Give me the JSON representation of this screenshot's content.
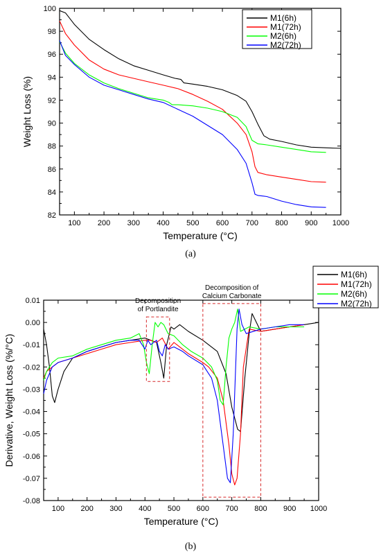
{
  "chart_data": [
    {
      "type": "line",
      "caption": "(a)",
      "xlabel": "Temperature (°C)",
      "ylabel": "Weight Loss (%)",
      "xlim": [
        50,
        1000
      ],
      "ylim": [
        82,
        100
      ],
      "xticks": [
        100,
        200,
        300,
        400,
        500,
        600,
        700,
        800,
        900,
        1000
      ],
      "yticks": [
        82,
        84,
        86,
        88,
        90,
        92,
        94,
        96,
        98,
        100
      ],
      "legend_position": "top-right",
      "series": [
        {
          "name": "M1(6h)",
          "color": "#000000",
          "x": [
            50,
            70,
            100,
            150,
            200,
            250,
            300,
            350,
            400,
            440,
            460,
            470,
            500,
            550,
            600,
            650,
            680,
            700,
            720,
            740,
            760,
            800,
            850,
            900,
            950,
            1000
          ],
          "y": [
            99.8,
            99.6,
            98.6,
            97.3,
            96.4,
            95.6,
            95.0,
            94.6,
            94.2,
            93.9,
            93.8,
            93.5,
            93.4,
            93.2,
            92.9,
            92.4,
            91.9,
            91.0,
            89.9,
            88.9,
            88.6,
            88.4,
            88.1,
            87.9,
            87.85,
            87.8
          ]
        },
        {
          "name": "M1(72h)",
          "color": "#ff0000",
          "x": [
            50,
            70,
            100,
            150,
            200,
            250,
            300,
            350,
            400,
            450,
            500,
            550,
            600,
            650,
            680,
            700,
            710,
            720,
            750,
            800,
            850,
            900,
            950
          ],
          "y": [
            98.9,
            97.8,
            96.8,
            95.5,
            94.7,
            94.2,
            93.9,
            93.6,
            93.3,
            93.0,
            92.5,
            91.9,
            91.2,
            90.0,
            89.0,
            87.5,
            86.2,
            85.7,
            85.5,
            85.3,
            85.1,
            84.9,
            84.85
          ]
        },
        {
          "name": "M2(6h)",
          "color": "#00ff00",
          "x": [
            50,
            70,
            100,
            150,
            200,
            250,
            300,
            350,
            400,
            420,
            430,
            450,
            500,
            550,
            600,
            650,
            680,
            700,
            720,
            750,
            800,
            850,
            900,
            950
          ],
          "y": [
            97.1,
            96.1,
            95.2,
            94.2,
            93.5,
            93.0,
            92.6,
            92.2,
            92.0,
            91.8,
            91.6,
            91.6,
            91.5,
            91.3,
            91.0,
            90.5,
            89.7,
            88.5,
            88.2,
            88.1,
            87.9,
            87.7,
            87.5,
            87.45
          ]
        },
        {
          "name": "M2(72h)",
          "color": "#0000ff",
          "x": [
            50,
            70,
            100,
            150,
            200,
            250,
            300,
            350,
            400,
            450,
            500,
            550,
            600,
            650,
            680,
            700,
            710,
            720,
            750,
            800,
            850,
            900,
            950
          ],
          "y": [
            97.2,
            95.9,
            95.1,
            94.0,
            93.3,
            92.9,
            92.5,
            92.1,
            91.8,
            91.2,
            90.6,
            89.8,
            89.0,
            87.7,
            86.5,
            84.8,
            83.8,
            83.7,
            83.6,
            83.2,
            82.9,
            82.7,
            82.65
          ]
        }
      ]
    },
    {
      "type": "line",
      "caption": "(b)",
      "xlabel": "Temperature (°C)",
      "ylabel": "Derivative, Weight Loss (%/°C)",
      "xlim": [
        50,
        1000
      ],
      "ylim": [
        -0.08,
        0.01
      ],
      "xticks": [
        100,
        200,
        300,
        400,
        500,
        600,
        700,
        800,
        900,
        1000
      ],
      "yticks": [
        -0.08,
        -0.07,
        -0.06,
        -0.05,
        -0.04,
        -0.03,
        -0.02,
        -0.01,
        0.0,
        0.01
      ],
      "ytick_labels": [
        "-0.08",
        "-0.07",
        "-0.06",
        "-0.05",
        "-0.04",
        "-0.03",
        "-0.02",
        "-0.01",
        "0.00",
        "0.01"
      ],
      "legend_position": "top-right",
      "annotations": [
        {
          "text_lines": [
            "Decomposition",
            "of Portlandite"
          ],
          "x_range": [
            405,
            485
          ],
          "y_range": [
            -0.0265,
            0.0025
          ]
        },
        {
          "text_lines": [
            "Decomposition of",
            "Calcium Carbonate"
          ],
          "x_range": [
            600,
            800
          ],
          "y_range": [
            -0.0785,
            0.0085
          ]
        }
      ],
      "series": [
        {
          "name": "M1(6h)",
          "color": "#000000",
          "x": [
            50,
            60,
            70,
            80,
            88,
            100,
            120,
            150,
            200,
            250,
            300,
            350,
            400,
            420,
            440,
            455,
            465,
            475,
            490,
            500,
            520,
            550,
            600,
            650,
            680,
            700,
            720,
            730,
            745,
            760,
            770,
            800,
            850,
            900,
            950,
            1000
          ],
          "y": [
            -0.003,
            -0.01,
            -0.02,
            -0.033,
            -0.036,
            -0.03,
            -0.022,
            -0.016,
            -0.013,
            -0.011,
            -0.009,
            -0.008,
            -0.007,
            -0.008,
            -0.009,
            -0.018,
            -0.025,
            -0.01,
            -0.002,
            -0.003,
            -0.001,
            -0.004,
            -0.008,
            -0.013,
            -0.023,
            -0.038,
            -0.048,
            -0.049,
            -0.025,
            -0.005,
            0.004,
            -0.004,
            -0.003,
            -0.002,
            -0.001,
            0.0
          ]
        },
        {
          "name": "M1(72h)",
          "color": "#ff0000",
          "x": [
            50,
            60,
            80,
            100,
            150,
            200,
            250,
            300,
            350,
            400,
            420,
            440,
            460,
            480,
            500,
            520,
            550,
            600,
            620,
            650,
            670,
            690,
            700,
            710,
            718,
            730,
            740,
            760,
            800,
            850,
            900,
            950
          ],
          "y": [
            -0.025,
            -0.022,
            -0.02,
            -0.018,
            -0.016,
            -0.014,
            -0.012,
            -0.01,
            -0.009,
            -0.008,
            -0.008,
            -0.009,
            -0.007,
            -0.012,
            -0.009,
            -0.011,
            -0.014,
            -0.018,
            -0.02,
            -0.025,
            -0.035,
            -0.055,
            -0.068,
            -0.073,
            -0.07,
            -0.05,
            -0.02,
            -0.003,
            -0.004,
            -0.003,
            -0.002,
            -0.001
          ]
        },
        {
          "name": "M2(6h)",
          "color": "#00ff00",
          "x": [
            50,
            60,
            80,
            100,
            150,
            200,
            250,
            300,
            350,
            380,
            395,
            405,
            415,
            425,
            435,
            445,
            455,
            465,
            480,
            500,
            530,
            560,
            600,
            630,
            650,
            660,
            670,
            680,
            690,
            700,
            710,
            720,
            730,
            760,
            800,
            850,
            900,
            950
          ],
          "y": [
            -0.026,
            -0.022,
            -0.018,
            -0.016,
            -0.015,
            -0.012,
            -0.01,
            -0.008,
            -0.007,
            -0.005,
            -0.01,
            -0.018,
            -0.023,
            -0.01,
            0.0,
            -0.002,
            0.0,
            -0.001,
            -0.005,
            -0.006,
            -0.01,
            -0.013,
            -0.016,
            -0.02,
            -0.026,
            -0.035,
            -0.037,
            -0.02,
            -0.007,
            -0.003,
            0.0,
            0.006,
            -0.004,
            -0.002,
            -0.003,
            -0.002,
            -0.002,
            -0.002
          ]
        },
        {
          "name": "M2(72h)",
          "color": "#0000ff",
          "x": [
            50,
            60,
            80,
            100,
            150,
            200,
            250,
            300,
            350,
            380,
            400,
            410,
            420,
            430,
            440,
            450,
            460,
            470,
            480,
            500,
            530,
            550,
            600,
            630,
            650,
            670,
            685,
            695,
            705,
            712,
            718,
            725,
            735,
            750,
            800,
            850,
            900,
            950
          ],
          "y": [
            -0.032,
            -0.026,
            -0.02,
            -0.018,
            -0.016,
            -0.013,
            -0.011,
            -0.009,
            -0.008,
            -0.008,
            -0.012,
            -0.008,
            -0.01,
            -0.009,
            -0.008,
            -0.013,
            -0.015,
            -0.01,
            -0.012,
            -0.011,
            -0.013,
            -0.015,
            -0.019,
            -0.025,
            -0.035,
            -0.055,
            -0.07,
            -0.072,
            -0.05,
            -0.025,
            -0.003,
            0.006,
            -0.001,
            -0.005,
            -0.003,
            -0.002,
            -0.001,
            -0.001
          ]
        }
      ]
    }
  ]
}
